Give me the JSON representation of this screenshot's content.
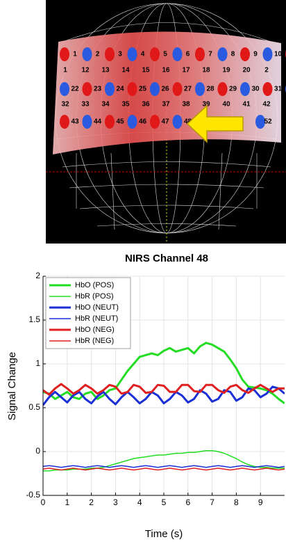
{
  "head_image": {
    "channel_rows": [
      [
        "1",
        "2",
        "3",
        "4",
        "5",
        "6",
        "7",
        "8",
        "9",
        "10"
      ],
      [
        "1",
        "12",
        "13",
        "14",
        "15",
        "16",
        "17",
        "18",
        "19",
        "20",
        "2"
      ],
      [
        "22",
        "23",
        "24",
        "25",
        "26",
        "27",
        "28",
        "29",
        "30",
        "31"
      ],
      [
        "32",
        "33",
        "34",
        "35",
        "36",
        "37",
        "38",
        "39",
        "40",
        "41",
        "42"
      ],
      [
        "43",
        "44",
        "45",
        "46",
        "47",
        "48",
        "52"
      ]
    ]
  },
  "chart_data": {
    "type": "line",
    "title": "NIRS Channel 48",
    "x_label": "Time (s)",
    "y_label": "Signal Change",
    "x": [
      0,
      0.25,
      0.5,
      0.75,
      1,
      1.25,
      1.5,
      1.75,
      2,
      2.25,
      2.5,
      2.75,
      3,
      3.25,
      3.5,
      3.75,
      4,
      4.25,
      4.5,
      4.75,
      5,
      5.25,
      5.5,
      5.75,
      6,
      6.25,
      6.5,
      6.75,
      7,
      7.25,
      7.5,
      7.75,
      8,
      8.25,
      8.5,
      8.75,
      9,
      9.25,
      9.5,
      9.75,
      10
    ],
    "series": [
      {
        "name": "HbO (POS)",
        "color": "#22dd22",
        "line_width": 3,
        "values": [
          0.68,
          0.66,
          0.6,
          0.64,
          0.68,
          0.62,
          0.6,
          0.66,
          0.68,
          0.6,
          0.64,
          0.7,
          0.72,
          0.82,
          0.92,
          1.0,
          1.08,
          1.1,
          1.12,
          1.1,
          1.15,
          1.18,
          1.14,
          1.16,
          1.18,
          1.12,
          1.2,
          1.24,
          1.22,
          1.18,
          1.14,
          1.05,
          0.95,
          0.82,
          0.74,
          0.73,
          0.72,
          0.7,
          0.66,
          0.6,
          0.55
        ]
      },
      {
        "name": "HbR (POS)",
        "color": "#22dd22",
        "line_width": 1.5,
        "values": [
          -0.22,
          -0.22,
          -0.21,
          -0.21,
          -0.21,
          -0.2,
          -0.2,
          -0.2,
          -0.19,
          -0.19,
          -0.18,
          -0.16,
          -0.14,
          -0.12,
          -0.1,
          -0.08,
          -0.07,
          -0.06,
          -0.05,
          -0.04,
          -0.04,
          -0.03,
          -0.02,
          -0.02,
          -0.01,
          -0.01,
          0,
          0.01,
          0.01,
          0,
          -0.02,
          -0.05,
          -0.08,
          -0.12,
          -0.15,
          -0.17,
          -0.18,
          -0.18,
          -0.19,
          -0.19,
          -0.19
        ]
      },
      {
        "name": "HbO (NEUT)",
        "color": "#1a2fd6",
        "line_width": 3,
        "values": [
          0.53,
          0.62,
          0.68,
          0.62,
          0.56,
          0.64,
          0.68,
          0.6,
          0.55,
          0.63,
          0.68,
          0.6,
          0.54,
          0.62,
          0.68,
          0.62,
          0.55,
          0.6,
          0.68,
          0.64,
          0.55,
          0.6,
          0.68,
          0.64,
          0.56,
          0.6,
          0.7,
          0.66,
          0.57,
          0.6,
          0.7,
          0.68,
          0.58,
          0.62,
          0.72,
          0.7,
          0.62,
          0.66,
          0.74,
          0.72,
          0.66
        ]
      },
      {
        "name": "HbR (NEUT)",
        "color": "#1a2fd6",
        "line_width": 1.5,
        "values": [
          -0.17,
          -0.16,
          -0.17,
          -0.18,
          -0.17,
          -0.16,
          -0.17,
          -0.18,
          -0.17,
          -0.16,
          -0.17,
          -0.18,
          -0.17,
          -0.16,
          -0.17,
          -0.18,
          -0.17,
          -0.16,
          -0.17,
          -0.18,
          -0.17,
          -0.16,
          -0.17,
          -0.18,
          -0.17,
          -0.16,
          -0.17,
          -0.18,
          -0.17,
          -0.16,
          -0.17,
          -0.18,
          -0.17,
          -0.16,
          -0.17,
          -0.18,
          -0.17,
          -0.16,
          -0.17,
          -0.18,
          -0.17
        ]
      },
      {
        "name": "HbO (NEG)",
        "color": "#e02020",
        "line_width": 3,
        "values": [
          0.7,
          0.65,
          0.72,
          0.77,
          0.72,
          0.66,
          0.7,
          0.76,
          0.72,
          0.66,
          0.7,
          0.76,
          0.74,
          0.66,
          0.68,
          0.76,
          0.74,
          0.67,
          0.68,
          0.76,
          0.75,
          0.68,
          0.68,
          0.76,
          0.76,
          0.69,
          0.68,
          0.76,
          0.76,
          0.7,
          0.67,
          0.74,
          0.76,
          0.7,
          0.67,
          0.72,
          0.76,
          0.72,
          0.68,
          0.72,
          0.72
        ]
      },
      {
        "name": "HbR (NEG)",
        "color": "#e02020",
        "line_width": 1.5,
        "values": [
          -0.2,
          -0.19,
          -0.2,
          -0.21,
          -0.2,
          -0.19,
          -0.2,
          -0.21,
          -0.2,
          -0.19,
          -0.2,
          -0.21,
          -0.2,
          -0.19,
          -0.2,
          -0.21,
          -0.2,
          -0.19,
          -0.2,
          -0.21,
          -0.2,
          -0.19,
          -0.2,
          -0.21,
          -0.2,
          -0.19,
          -0.2,
          -0.21,
          -0.2,
          -0.19,
          -0.2,
          -0.21,
          -0.2,
          -0.19,
          -0.2,
          -0.21,
          -0.2,
          -0.19,
          -0.2,
          -0.21,
          -0.2
        ]
      }
    ],
    "xlim": [
      0,
      10
    ],
    "xticks": [
      0,
      1,
      2,
      3,
      4,
      5,
      6,
      7,
      8,
      9
    ],
    "ylim": [
      -0.5,
      2
    ],
    "yticks": [
      -0.5,
      0,
      0.5,
      1,
      1.5,
      2
    ],
    "grid": true,
    "legend": "upper-left"
  }
}
